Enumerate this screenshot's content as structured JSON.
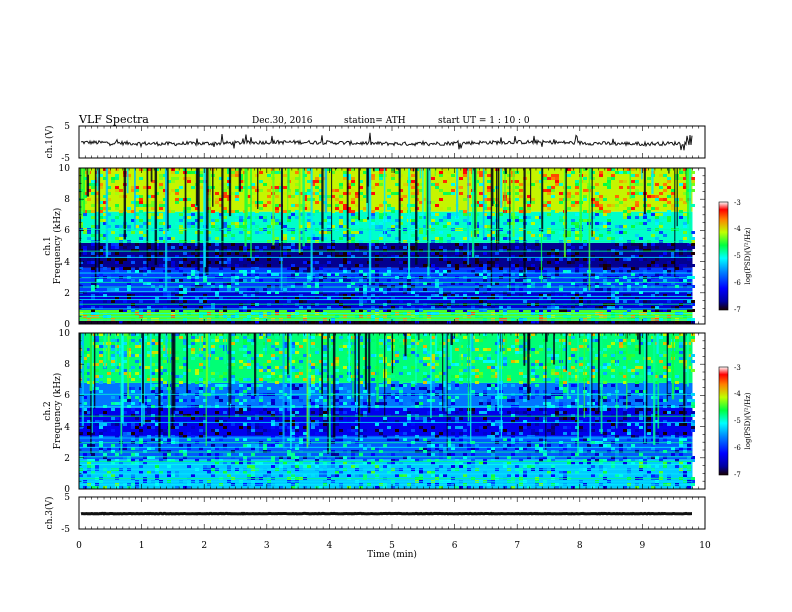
{
  "header": {
    "title": "VLF  Spectra",
    "date": "Dec.30, 2016",
    "station": "station= ATH",
    "start": "start  UT  =    1  : 10 : 0"
  },
  "colors": {
    "waveform": "#111111",
    "colormap": [
      "#1a0000",
      "#0000a0",
      "#0000ff",
      "#0080ff",
      "#00ffff",
      "#00ff40",
      "#c0ff00",
      "#ff8000",
      "#ff0000",
      "#ffffff"
    ]
  },
  "chart_data": [
    {
      "type": "line",
      "ylabel": "ch.1(V)",
      "yticks": [
        "5",
        "-5"
      ],
      "ylim": [
        -5,
        5
      ],
      "xlim": [
        0,
        10
      ],
      "baseline": 0
    },
    {
      "type": "heatmap",
      "ylabel_top": "ch.1",
      "ylabel": "Frequency  (kHz)",
      "yticks": [
        "0",
        "2",
        "4",
        "6",
        "8",
        "10"
      ],
      "ylim": [
        0,
        10
      ],
      "xlim": [
        0,
        10
      ],
      "data_extent_min": 9.8,
      "colorbar": {
        "label": "log(PSD)(V²/Hz)",
        "ticks": [
          "-3",
          "-4",
          "-5",
          "-6",
          "-7"
        ],
        "range": [
          -7,
          -3
        ]
      },
      "bands": [
        {
          "f0": 0.0,
          "f1": 0.2,
          "level": -6.9
        },
        {
          "f0": 0.2,
          "f1": 0.9,
          "level": -4.6
        },
        {
          "f0": 0.9,
          "f1": 2.1,
          "level": -6.3
        },
        {
          "f0": 2.1,
          "f1": 3.6,
          "level": -5.9
        },
        {
          "f0": 3.6,
          "f1": 5.2,
          "level": -6.6
        },
        {
          "f0": 5.2,
          "f1": 7.2,
          "level": -5.1
        },
        {
          "f0": 7.2,
          "f1": 10.0,
          "level": -4.3
        }
      ]
    },
    {
      "type": "heatmap",
      "ylabel_top": "ch.2",
      "ylabel": "Frequency  (kHz)",
      "yticks": [
        "0",
        "2",
        "4",
        "6",
        "8",
        "10"
      ],
      "ylim": [
        0,
        10
      ],
      "xlim": [
        0,
        10
      ],
      "data_extent_min": 9.8,
      "colorbar": {
        "label": "log(PSD)(V²/Hz)",
        "ticks": [
          "-3",
          "-4",
          "-5",
          "-6",
          "-7"
        ],
        "range": [
          -7,
          -3
        ]
      },
      "bands": [
        {
          "f0": 0.0,
          "f1": 1.9,
          "level": -5.4
        },
        {
          "f0": 1.9,
          "f1": 3.4,
          "level": -5.8
        },
        {
          "f0": 3.4,
          "f1": 5.2,
          "level": -6.2
        },
        {
          "f0": 5.2,
          "f1": 6.8,
          "level": -5.7
        },
        {
          "f0": 6.8,
          "f1": 10.0,
          "level": -4.9
        }
      ]
    },
    {
      "type": "line",
      "ylabel": "ch.3(V)",
      "yticks": [
        "5",
        "-5"
      ],
      "ylim": [
        -5,
        5
      ],
      "xlim": [
        0,
        10
      ],
      "baseline": 0,
      "xlabel": "Time  (min)",
      "xticks": [
        "0",
        "1",
        "2",
        "3",
        "4",
        "5",
        "6",
        "7",
        "8",
        "9",
        "10"
      ]
    }
  ]
}
